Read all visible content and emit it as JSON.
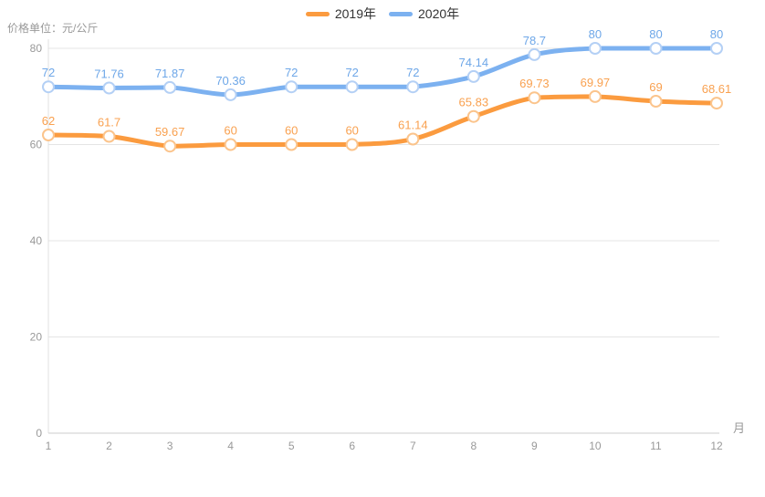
{
  "header": {
    "unit_label": "价格单位：元/公斤"
  },
  "chart_data": {
    "type": "line",
    "title": "价格单位：元/公斤",
    "xlabel": "月",
    "ylabel": "",
    "categories": [
      1,
      2,
      3,
      4,
      5,
      6,
      7,
      8,
      9,
      10,
      11,
      12
    ],
    "series": [
      {
        "name": "2019年",
        "values": [
          62,
          61.7,
          59.67,
          60,
          60,
          60,
          61.14,
          65.83,
          69.73,
          69.97,
          69,
          68.61
        ],
        "color": "#fb9b3f",
        "marker_border": "#fbc48c",
        "label_color": "#f9a150"
      },
      {
        "name": "2020年",
        "values": [
          72,
          71.76,
          71.87,
          70.36,
          72,
          72,
          72,
          74.14,
          78.7,
          80,
          80,
          80
        ],
        "color": "#7cb1f0",
        "marker_border": "#b4d0f5",
        "label_color": "#6ea7e8"
      }
    ],
    "ylim": [
      0,
      80
    ],
    "yticks": [
      0,
      20,
      40,
      60,
      80
    ],
    "grid": true,
    "smooth": true,
    "show_point_labels": true,
    "legend_position": "top",
    "axis_text_color": "#999999",
    "grid_color": "#e5e5e5",
    "axis_line_color": "#cccccc"
  }
}
